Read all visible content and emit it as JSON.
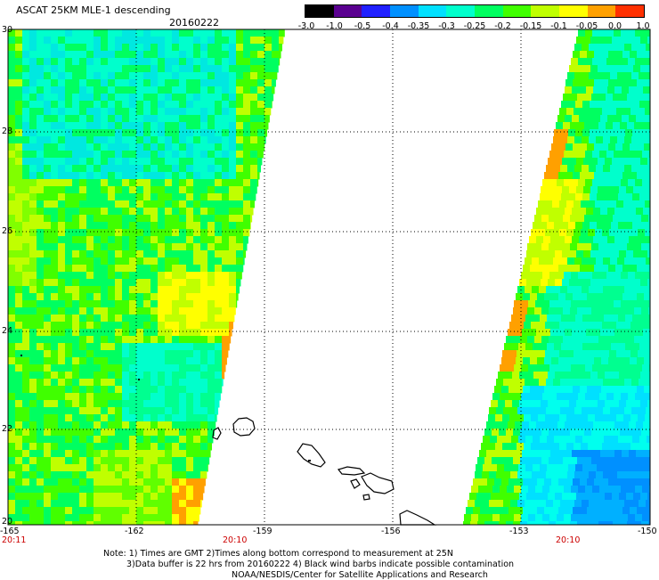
{
  "header": {
    "title": "ASCAT 25KM MLE-1 descending",
    "date": "20160222"
  },
  "colorbar": {
    "labels": [
      "-3.0",
      "-1.0",
      "-0.5",
      "-0.4",
      "-0.35",
      "-0.3",
      "-0.25",
      "-0.2",
      "-0.15",
      "-0.1",
      "-0.05",
      "0.0",
      "1.0"
    ],
    "colors": [
      "#000000",
      "#5a0090",
      "#2020ff",
      "#0090ff",
      "#00e0ff",
      "#00ffcc",
      "#00ff60",
      "#40ff00",
      "#c0ff00",
      "#ffff00",
      "#ffa000",
      "#ff3000"
    ]
  },
  "map": {
    "lat_labels": [
      "30",
      "28",
      "26",
      "24",
      "22",
      "20"
    ],
    "lon_labels": [
      "-165",
      "-162",
      "-159",
      "-156",
      "-153",
      "-150"
    ],
    "lat_range": [
      20,
      30
    ],
    "lon_range": [
      -165,
      -150
    ],
    "grid": "dotted",
    "swaths": [
      "west",
      "east"
    ]
  },
  "times": [
    "20:11",
    "20:10",
    "20:10"
  ],
  "notes": [
    "Note: 1) Times are GMT 2)Times along bottom correspond to measurement at 25N",
    "3)Data buffer is 22 hrs from 20160222 4) Black wind barbs indicate possible contamination",
    "NOAA/NESDIS/Center for Satellite Applications and Research"
  ]
}
